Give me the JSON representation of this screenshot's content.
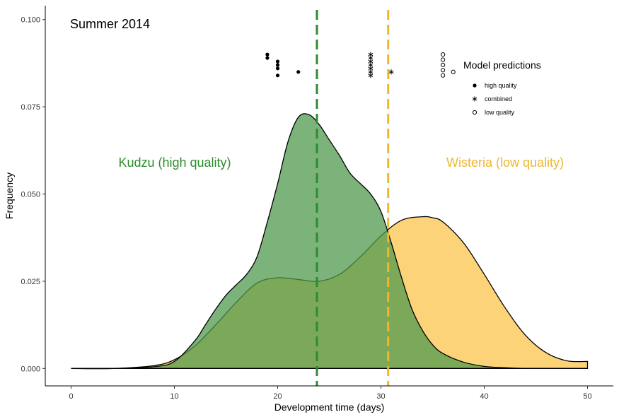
{
  "chart_data": {
    "type": "area",
    "title": "Summer 2014",
    "xlabel": "Development time (days)",
    "ylabel": "Frequency",
    "xlim": [
      -2.5,
      52.5
    ],
    "ylim": [
      -0.005,
      0.104
    ],
    "x_ticks": [
      0,
      10,
      20,
      30,
      40,
      50
    ],
    "x_tick_labels": [
      "0",
      "10",
      "20",
      "30",
      "40",
      "50"
    ],
    "y_ticks": [
      0.0,
      0.025,
      0.05,
      0.075,
      0.1
    ],
    "y_tick_labels": [
      "0.000",
      "0.025",
      "0.050",
      "0.075",
      "0.100"
    ],
    "grid": false,
    "colors": {
      "kudzu": "#2e8b2e",
      "kudzu_fill": "#4f9a4f",
      "wisteria": "#f0b62e",
      "wisteria_fill": "#fcc44d",
      "overlap_fill": "#7a9e3a"
    },
    "series": [
      {
        "name": "Kudzu (high quality)",
        "x": [
          0,
          4,
          8,
          10,
          12,
          13,
          14,
          15,
          16,
          17,
          18,
          19,
          20,
          21,
          22,
          23,
          24,
          25,
          26,
          27,
          28,
          29,
          30,
          31,
          32,
          33,
          34,
          35,
          36,
          38,
          40,
          42,
          44,
          46,
          48,
          50
        ],
        "values": [
          0.0,
          0.0,
          0.0005,
          0.002,
          0.008,
          0.0125,
          0.017,
          0.021,
          0.024,
          0.027,
          0.032,
          0.042,
          0.053,
          0.065,
          0.072,
          0.0728,
          0.07,
          0.0655,
          0.061,
          0.056,
          0.053,
          0.05,
          0.045,
          0.036,
          0.026,
          0.017,
          0.011,
          0.0068,
          0.0043,
          0.0018,
          0.0006,
          0.0002,
          0.0,
          0.0,
          0.0,
          0.0
        ]
      },
      {
        "name": "Wisteria (low quality)",
        "x": [
          0,
          4,
          8,
          10,
          12,
          14,
          16,
          18,
          20,
          22,
          24,
          26,
          28,
          30,
          32,
          34,
          35,
          36,
          38,
          40,
          42,
          44,
          46,
          48,
          50
        ],
        "values": [
          0.0,
          0.0,
          0.0008,
          0.0025,
          0.0065,
          0.0125,
          0.019,
          0.0245,
          0.026,
          0.0255,
          0.025,
          0.027,
          0.032,
          0.038,
          0.0425,
          0.0435,
          0.0432,
          0.042,
          0.036,
          0.027,
          0.0175,
          0.0095,
          0.0045,
          0.0022,
          0.002
        ]
      }
    ],
    "vlines": [
      {
        "series": "Kudzu (high quality)",
        "x": 23.8
      },
      {
        "series": "Wisteria (low quality)",
        "x": 30.7
      }
    ],
    "model_predictions": {
      "legend_title": "Model predictions",
      "legend_position": "top-right",
      "legend_entries": [
        {
          "shape": "filled-circle",
          "label": "high quality"
        },
        {
          "shape": "asterisk",
          "label": "combined"
        },
        {
          "shape": "open-circle",
          "label": "low quality"
        }
      ],
      "points": [
        {
          "shape": "filled-circle",
          "x": 19,
          "y": 0.09
        },
        {
          "shape": "filled-circle",
          "x": 19,
          "y": 0.089
        },
        {
          "shape": "filled-circle",
          "x": 20,
          "y": 0.088
        },
        {
          "shape": "filled-circle",
          "x": 20,
          "y": 0.087
        },
        {
          "shape": "filled-circle",
          "x": 20,
          "y": 0.086
        },
        {
          "shape": "filled-circle",
          "x": 20,
          "y": 0.084
        },
        {
          "shape": "filled-circle",
          "x": 22,
          "y": 0.085
        },
        {
          "shape": "asterisk",
          "x": 29,
          "y": 0.09
        },
        {
          "shape": "asterisk",
          "x": 29,
          "y": 0.089
        },
        {
          "shape": "asterisk",
          "x": 29,
          "y": 0.088
        },
        {
          "shape": "asterisk",
          "x": 29,
          "y": 0.087
        },
        {
          "shape": "asterisk",
          "x": 29,
          "y": 0.086
        },
        {
          "shape": "asterisk",
          "x": 29,
          "y": 0.085
        },
        {
          "shape": "asterisk",
          "x": 29,
          "y": 0.084
        },
        {
          "shape": "asterisk",
          "x": 31,
          "y": 0.085
        },
        {
          "shape": "open-circle",
          "x": 36,
          "y": 0.09
        },
        {
          "shape": "open-circle",
          "x": 36,
          "y": 0.0885
        },
        {
          "shape": "open-circle",
          "x": 36,
          "y": 0.087
        },
        {
          "shape": "open-circle",
          "x": 36,
          "y": 0.0855
        },
        {
          "shape": "open-circle",
          "x": 36,
          "y": 0.084
        },
        {
          "shape": "open-circle",
          "x": 37,
          "y": 0.085
        }
      ]
    }
  }
}
